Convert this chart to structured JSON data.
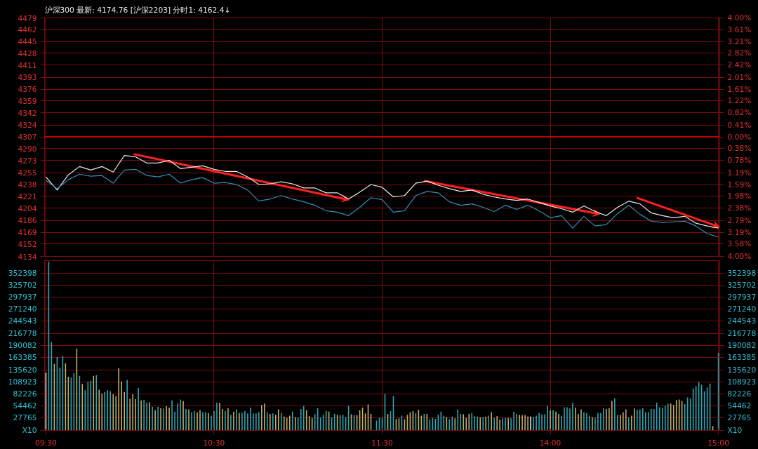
{
  "chart_data": [
    {
      "type": "line",
      "title": "沪深300 最新: 4174.76 [沪深2203] 分时1: 4162.4↓",
      "categories": [
        null,
        null,
        null,
        null,
        null,
        null,
        null,
        null,
        null,
        null,
        null,
        null,
        null,
        null,
        null,
        null,
        null,
        null,
        null,
        null,
        null,
        null,
        null,
        null,
        null,
        null,
        null,
        null,
        null,
        null,
        null,
        null,
        null,
        null,
        null,
        null,
        null,
        null,
        null,
        null,
        null,
        null,
        null,
        null,
        null,
        null,
        null,
        null,
        null,
        null,
        null,
        null,
        null,
        null,
        null,
        null,
        null,
        null,
        null,
        null,
        null
      ],
      "ylim": [
        4134,
        4479
      ],
      "yticks": [
        4134,
        4152,
        4169,
        4186,
        4204,
        4221,
        4238,
        4255,
        4273,
        4290,
        4307,
        4324,
        4342,
        4359,
        4376,
        4393,
        4411,
        4428,
        4445,
        4462,
        4479
      ],
      "y2lim": [
        -4.0,
        4.0
      ],
      "y2ticks": [
        {
          "value": -4.0,
          "label": "4.00%"
        },
        {
          "value": -3.58,
          "label": "3.58%"
        },
        {
          "value": -3.19,
          "label": "3.19%"
        },
        {
          "value": -2.79,
          "label": "2.79%"
        },
        {
          "value": -2.38,
          "label": "2.38%"
        },
        {
          "value": -1.98,
          "label": "1.98%"
        },
        {
          "value": -1.59,
          "label": "1.59%"
        },
        {
          "value": -1.19,
          "label": "1.19%"
        },
        {
          "value": -0.78,
          "label": "0.78%"
        },
        {
          "value": -0.38,
          "label": "0.38%"
        },
        {
          "value": 0.0,
          "label": "0.00%"
        },
        {
          "value": 0.41,
          "label": "0.41%"
        },
        {
          "value": 0.82,
          "label": "0.82%"
        },
        {
          "value": 1.22,
          "label": "1.22%"
        },
        {
          "value": 1.61,
          "label": "1.61%"
        },
        {
          "value": 2.01,
          "label": "2.01%"
        },
        {
          "value": 2.42,
          "label": "2.42%"
        },
        {
          "value": 2.82,
          "label": "2.82%"
        },
        {
          "value": 3.21,
          "label": "3.21%"
        },
        {
          "value": 3.61,
          "label": "3.61%"
        },
        {
          "value": 4.0,
          "label": "4.00%"
        }
      ],
      "tick_labels": "y",
      "grid": true,
      "ref_lines": [
        {
          "axis": "y",
          "value": 4307,
          "color": "#c00000"
        }
      ],
      "series": [
        {
          "color": "#e8e8e8",
          "values": [
            4249,
            4230,
            4252,
            4264,
            4259,
            4264,
            4256,
            4280,
            4278,
            4269,
            4269,
            4273,
            4261,
            4263,
            4265,
            4260,
            4257,
            4257,
            4249,
            4238,
            4239,
            4242,
            4239,
            4233,
            4233,
            4226,
            4226,
            4217,
            4227,
            4238,
            4234,
            4220,
            4222,
            4240,
            4243,
            4237,
            4232,
            4228,
            4230,
            4224,
            4220,
            4217,
            4215,
            4217,
            4212,
            4207,
            4203,
            4198,
            4207,
            4199,
            4193,
            4205,
            4214,
            4210,
            4197,
            4193,
            4190,
            4192,
            4182,
            4178,
            4175
          ]
        },
        {
          "color": "#2f8fb5",
          "values": [
            4244,
            4232,
            4245,
            4253,
            4250,
            4251,
            4240,
            4259,
            4260,
            4251,
            4249,
            4253,
            4240,
            4245,
            4248,
            4240,
            4241,
            4238,
            4230,
            4214,
            4217,
            4222,
            4217,
            4213,
            4208,
            4200,
            4198,
            4193,
            4205,
            4219,
            4216,
            4198,
            4200,
            4222,
            4228,
            4226,
            4213,
            4208,
            4210,
            4205,
            4199,
            4208,
            4202,
            4208,
            4200,
            4190,
            4193,
            4175,
            4192,
            4178,
            4180,
            4196,
            4208,
            4195,
            4185,
            4183,
            4184,
            4185,
            4178,
            4167,
            4162
          ]
        }
      ]
    },
    {
      "type": "bar",
      "categories": [
        "09:30",
        null,
        null,
        null,
        null,
        null,
        null,
        null,
        null,
        null,
        null,
        null,
        null,
        null,
        null,
        null,
        null,
        null,
        null,
        null,
        null,
        null,
        null,
        null,
        null,
        null,
        null,
        null,
        null,
        null,
        null,
        null,
        null,
        null,
        null,
        null,
        null,
        null,
        null,
        null,
        null,
        null,
        null,
        null,
        null,
        null,
        null,
        null,
        null,
        null,
        null,
        null,
        null,
        null,
        null,
        null,
        null,
        null,
        null,
        null,
        "10:30",
        null,
        null,
        null,
        null,
        null,
        null,
        null,
        null,
        null,
        null,
        null,
        null,
        null,
        null,
        null,
        null,
        null,
        null,
        null,
        null,
        null,
        null,
        null,
        null,
        null,
        null,
        null,
        null,
        null,
        null,
        null,
        null,
        null,
        null,
        null,
        null,
        null,
        null,
        null,
        null,
        null,
        null,
        null,
        null,
        null,
        null,
        null,
        null,
        null,
        null,
        null,
        null,
        null,
        null,
        null,
        null,
        null,
        null,
        null,
        "11:30",
        null,
        null,
        null,
        null,
        null,
        null,
        null,
        null,
        null,
        null,
        null,
        null,
        null,
        null,
        null,
        null,
        null,
        null,
        null,
        null,
        null,
        null,
        null,
        null,
        null,
        null,
        null,
        null,
        null,
        null,
        null,
        null,
        null,
        null,
        null,
        null,
        null,
        null,
        null,
        null,
        null,
        null,
        null,
        null,
        null,
        null,
        null,
        null,
        null,
        null,
        null,
        null,
        null,
        null,
        null,
        null,
        null,
        null,
        null,
        "14:00",
        null,
        null,
        null,
        null,
        null,
        null,
        null,
        null,
        null,
        null,
        null,
        null,
        null,
        null,
        null,
        null,
        null,
        null,
        null,
        null,
        null,
        null,
        null,
        null,
        null,
        null,
        null,
        null,
        null,
        null,
        null,
        null,
        null,
        null,
        null,
        null,
        null,
        null,
        null,
        null,
        null,
        null,
        null,
        null,
        null,
        null,
        null,
        null,
        null,
        null,
        null,
        null,
        null,
        null,
        null,
        null,
        null,
        null,
        null,
        "15:00"
      ],
      "ylim": [
        0,
        380100
      ],
      "yticks": [
        {
          "value": 0,
          "label": "X10"
        },
        27765,
        54462,
        82226,
        108923,
        135620,
        163385,
        190082,
        216778,
        244543,
        271240,
        297937,
        325702,
        352398
      ],
      "y2lim": [
        0,
        380100
      ],
      "y2ticks": [
        {
          "value": 0,
          "label": "X10"
        },
        27765,
        54462,
        82226,
        108923,
        135620,
        163385,
        190082,
        216778,
        244543,
        271240,
        297937,
        325702,
        352398
      ],
      "grid": true,
      "values": [
        129000,
        378000,
        198000,
        149000,
        164000,
        141000,
        167000,
        150000,
        120000,
        118000,
        128000,
        183000,
        122000,
        104000,
        90000,
        109000,
        111000,
        122000,
        124000,
        91000,
        82000,
        86000,
        90000,
        88000,
        81000,
        77000,
        139000,
        109000,
        86000,
        113000,
        71000,
        81000,
        70000,
        95000,
        67000,
        68000,
        62000,
        63000,
        53000,
        45000,
        53000,
        50000,
        49000,
        54000,
        51000,
        67000,
        42000,
        60000,
        69000,
        66000,
        48000,
        47000,
        41000,
        43000,
        41000,
        45000,
        41000,
        41000,
        39000,
        33000,
        43000,
        62000,
        62000,
        48000,
        43000,
        50000,
        35000,
        42000,
        47000,
        39000,
        40000,
        43000,
        38000,
        51000,
        38000,
        38000,
        41000,
        57000,
        60000,
        41000,
        37000,
        38000,
        35000,
        47000,
        39000,
        31000,
        28000,
        33000,
        42000,
        30000,
        29000,
        48000,
        55000,
        45000,
        32000,
        28000,
        36000,
        50000,
        29000,
        35000,
        44000,
        42000,
        29000,
        37000,
        35000,
        34000,
        35000,
        30000,
        55000,
        36000,
        34000,
        34000,
        45000,
        51000,
        38000,
        58000,
        37000,
        null,
        22000,
        28000,
        28000,
        81000,
        37000,
        43000,
        77000,
        26000,
        27000,
        33000,
        25000,
        35000,
        41000,
        43000,
        39000,
        46000,
        33000,
        37000,
        37000,
        25000,
        28000,
        26000,
        35000,
        42000,
        33000,
        30000,
        25000,
        31000,
        27000,
        47000,
        37000,
        36000,
        28000,
        37000,
        39000,
        32000,
        31000,
        29000,
        30000,
        31000,
        33000,
        41000,
        28000,
        32000,
        24000,
        27000,
        28000,
        28000,
        27000,
        42000,
        37000,
        35000,
        34000,
        34000,
        31000,
        31000,
        30000,
        33000,
        39000,
        36000,
        36000,
        55000,
        45000,
        45000,
        42000,
        37000,
        33000,
        52000,
        52000,
        49000,
        62000,
        51000,
        37000,
        47000,
        41000,
        39000,
        33000,
        30000,
        28000,
        39000,
        39000,
        50000,
        48000,
        50000,
        66000,
        72000,
        35000,
        35000,
        41000,
        47000,
        29000,
        33000,
        49000,
        46000,
        47000,
        50000,
        41000,
        41000,
        48000,
        48000,
        62000,
        52000,
        51000,
        55000,
        60000,
        60000,
        57000,
        68000,
        69000,
        66000,
        59000,
        74000,
        71000,
        94000,
        99000,
        108000,
        102000,
        88000,
        96000,
        105000,
        10000,
        null,
        173000
      ],
      "colors": [
        "#e8e8e8",
        "#2aa6b4",
        "#2aa6b4",
        "#bfae6a",
        "#2aa6b4",
        "#2aa6b4",
        "#2aa6b4",
        "#bfae6a",
        "#bfae6a",
        "#2aa6b4",
        "#2aa6b4",
        "#bfae6a",
        "#2aa6b4",
        "#bfae6a",
        "#2aa6b4",
        "#2aa6b4",
        "#2aa6b4",
        "#bfae6a",
        "#2aa6b4",
        "#bfae6a",
        "#bfae6a",
        "#2aa6b4",
        "#2aa6b4",
        "#2aa6b4",
        "#bfae6a",
        "#bfae6a",
        "#bfae6a",
        "#bfae6a",
        "#bfae6a",
        "#2aa6b4",
        "#bfae6a",
        "#bfae6a",
        "#bfae6a",
        "#2aa6b4",
        "#bfae6a",
        "#2aa6b4",
        "#2aa6b4",
        "#bfae6a",
        "#2aa6b4",
        "#bfae6a",
        "#2aa6b4",
        "#bfae6a",
        "#2aa6b4",
        "#bfae6a",
        "#bfae6a",
        "#2aa6b4",
        "#2aa6b4",
        "#2aa6b4",
        "#2aa6b4",
        "#bfae6a",
        "#2aa6b4",
        "#bfae6a",
        "#2aa6b4",
        "#2aa6b4",
        "#bfae6a",
        "#bfae6a",
        "#2aa6b4",
        "#2aa6b4",
        "#bfae6a",
        "#2aa6b4",
        "#2aa6b4",
        "#2aa6b4",
        "#bfae6a",
        "#bfae6a",
        "#2aa6b4",
        "#bfae6a",
        "#2aa6b4",
        "#bfae6a",
        "#2aa6b4",
        "#bfae6a",
        "#2aa6b4",
        "#2aa6b4",
        "#2aa6b4",
        "#2aa6b4",
        "#2aa6b4",
        "#2aa6b4",
        "#2aa6b4",
        "#bfae6a",
        "#bfae6a",
        "#2aa6b4",
        "#bfae6a",
        "#2aa6b4",
        "#bfae6a",
        "#bfae6a",
        "#2aa6b4",
        "#bfae6a",
        "#bfae6a",
        "#bfae6a",
        "#2aa6b4",
        "#bfae6a",
        "#2aa6b4",
        "#2aa6b4",
        "#2aa6b4",
        "#bfae6a",
        "#bfae6a",
        "#bfae6a",
        "#2aa6b4",
        "#2aa6b4",
        "#2aa6b4",
        "#2aa6b4",
        "#2aa6b4",
        "#bfae6a",
        "#2aa6b4",
        "#2aa6b4",
        "#bfae6a",
        "#2aa6b4",
        "#2aa6b4",
        "#2aa6b4",
        "#2aa6b4",
        "#bfae6a",
        "#2aa6b4",
        "#bfae6a",
        "#bfae6a",
        "#bfae6a",
        "#bfae6a",
        "#bfae6a",
        "#bfae6a",
        "#2aa6b4",
        "#2aa6b4",
        "#2aa6b4",
        "#2aa6b4",
        "#2aa6b4",
        "#bfae6a",
        "#2aa6b4",
        "#2aa6b4",
        "#bfae6a",
        "#bfae6a",
        "#2aa6b4",
        "#bfae6a",
        "#bfae6a",
        "#bfae6a",
        "#bfae6a",
        "#2aa6b4",
        "#bfae6a",
        "#bfae6a",
        "#2aa6b4",
        "#bfae6a",
        "#2aa6b4",
        "#2aa6b4",
        "#2aa6b4",
        "#2aa6b4",
        "#2aa6b4",
        "#2aa6b4",
        "#bfae6a",
        "#2aa6b4",
        "#2aa6b4",
        "#bfae6a",
        "#2aa6b4",
        "#2aa6b4",
        "#bfae6a",
        "#bfae6a",
        "#bfae6a",
        "#2aa6b4",
        "#2aa6b4",
        "#2aa6b4",
        "#bfae6a",
        "#2aa6b4",
        "#bfae6a",
        "#2aa6b4",
        "#bfae6a",
        "#2aa6b4",
        "#bfae6a",
        "#bfae6a",
        "#2aa6b4",
        "#2aa6b4",
        "#bfae6a",
        "#2aa6b4",
        "#2aa6b4",
        "#2aa6b4",
        "#bfae6a",
        "#bfae6a",
        "#bfae6a",
        "#bfae6a",
        "#e8e8e8",
        "#2aa6b4",
        "#2aa6b4",
        "#2aa6b4",
        "#2aa6b4",
        "#2aa6b4",
        "#2aa6b4",
        "#bfae6a",
        "#2aa6b4",
        "#bfae6a",
        "#bfae6a",
        "#2aa6b4",
        "#2aa6b4",
        "#2aa6b4",
        "#2aa6b4",
        "#2aa6b4",
        "#bfae6a",
        "#bfae6a",
        "#bfae6a",
        "#2aa6b4",
        "#2aa6b4",
        "#2aa6b4",
        "#bfae6a",
        "#2aa6b4",
        "#2aa6b4",
        "#2aa6b4",
        "#2aa6b4",
        "#bfae6a",
        "#bfae6a",
        "#bfae6a",
        "#2aa6b4",
        "#2aa6b4",
        "#bfae6a",
        "#bfae6a",
        "#bfae6a",
        "#2aa6b4",
        "#bfae6a",
        "#bfae6a",
        "#2aa6b4",
        "#2aa6b4",
        "#2aa6b4",
        "#2aa6b4",
        "#2aa6b4",
        "#2aa6b4",
        "#2aa6b4",
        "#2aa6b4",
        "#2aa6b4",
        "#2aa6b4",
        "#2aa6b4",
        "#2aa6b4",
        "#bfae6a",
        "#bfae6a",
        "#bfae6a",
        "#bfae6a",
        "#bfae6a",
        "#2aa6b4",
        "#2aa6b4",
        "#2aa6b4",
        "#2aa6b4",
        "#2aa6b4",
        "#2aa6b4",
        "#2aa6b4",
        "#2aa6b4",
        "#2aa6b4",
        "#2aa6b4",
        "#bfae6a",
        "#2aa6b4",
        "#2aa6b4"
      ]
    }
  ]
}
